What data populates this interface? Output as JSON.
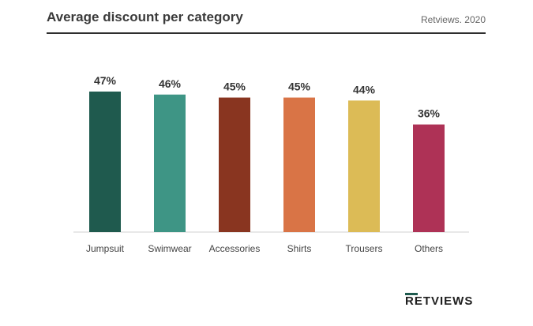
{
  "header": {
    "title": "Average discount per category",
    "source": "Retviews. 2020"
  },
  "brand": {
    "logo_text": "RETVIEWS",
    "accent": "#1e5a4e"
  },
  "chart_data": {
    "type": "bar",
    "title": "Average discount per category",
    "xlabel": "",
    "ylabel": "",
    "unit": "%",
    "ylim": [
      0,
      47
    ],
    "grid": false,
    "categories": [
      "Jumpsuit",
      "Swimwear",
      "Accessories",
      "Shirts",
      "Trousers",
      "Others"
    ],
    "values": [
      47,
      46,
      45,
      45,
      44,
      36
    ],
    "value_labels": [
      "47%",
      "46%",
      "45%",
      "45%",
      "44%",
      "36%"
    ],
    "colors": [
      "#1f5a4e",
      "#3e9585",
      "#893520",
      "#d97446",
      "#dcbb56",
      "#ae3256"
    ]
  }
}
